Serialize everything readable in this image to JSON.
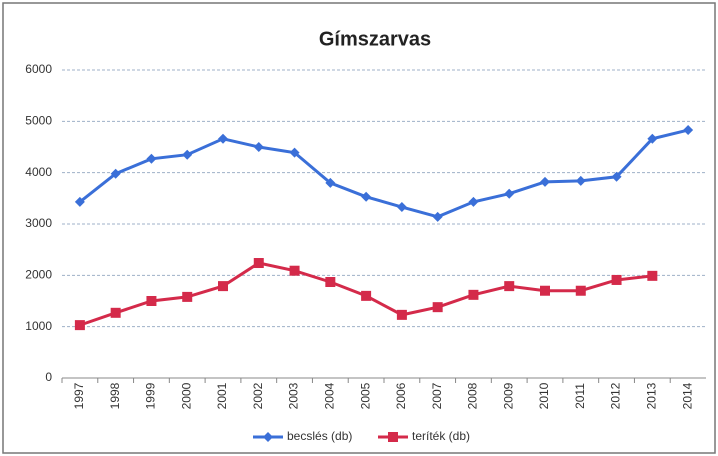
{
  "chart_data": {
    "type": "line",
    "title": "Gímszarvas",
    "categories": [
      "1997",
      "1998",
      "1999",
      "2000",
      "2001",
      "2002",
      "2003",
      "2004",
      "2005",
      "2006",
      "2007",
      "2008",
      "2009",
      "2010",
      "2011",
      "2012",
      "2013",
      "2014"
    ],
    "series": [
      {
        "name": "becslés (db)",
        "color": "#3a6fd8",
        "marker": "diamond",
        "values": [
          3430,
          3980,
          4270,
          4350,
          4660,
          4500,
          4390,
          3800,
          3530,
          3330,
          3140,
          3430,
          3590,
          3820,
          3840,
          3920,
          4660,
          4830
        ]
      },
      {
        "name": "teríték (db)",
        "color": "#d42a4a",
        "marker": "square",
        "values": [
          1030,
          1270,
          1500,
          1580,
          1790,
          2240,
          2090,
          1870,
          1600,
          1230,
          1380,
          1620,
          1790,
          1700,
          1700,
          1910,
          1990,
          null
        ]
      }
    ],
    "ylim": [
      0,
      6000
    ],
    "yticks": [
      0,
      1000,
      2000,
      3000,
      4000,
      5000,
      6000
    ],
    "grid": true,
    "legend": "bottom"
  }
}
